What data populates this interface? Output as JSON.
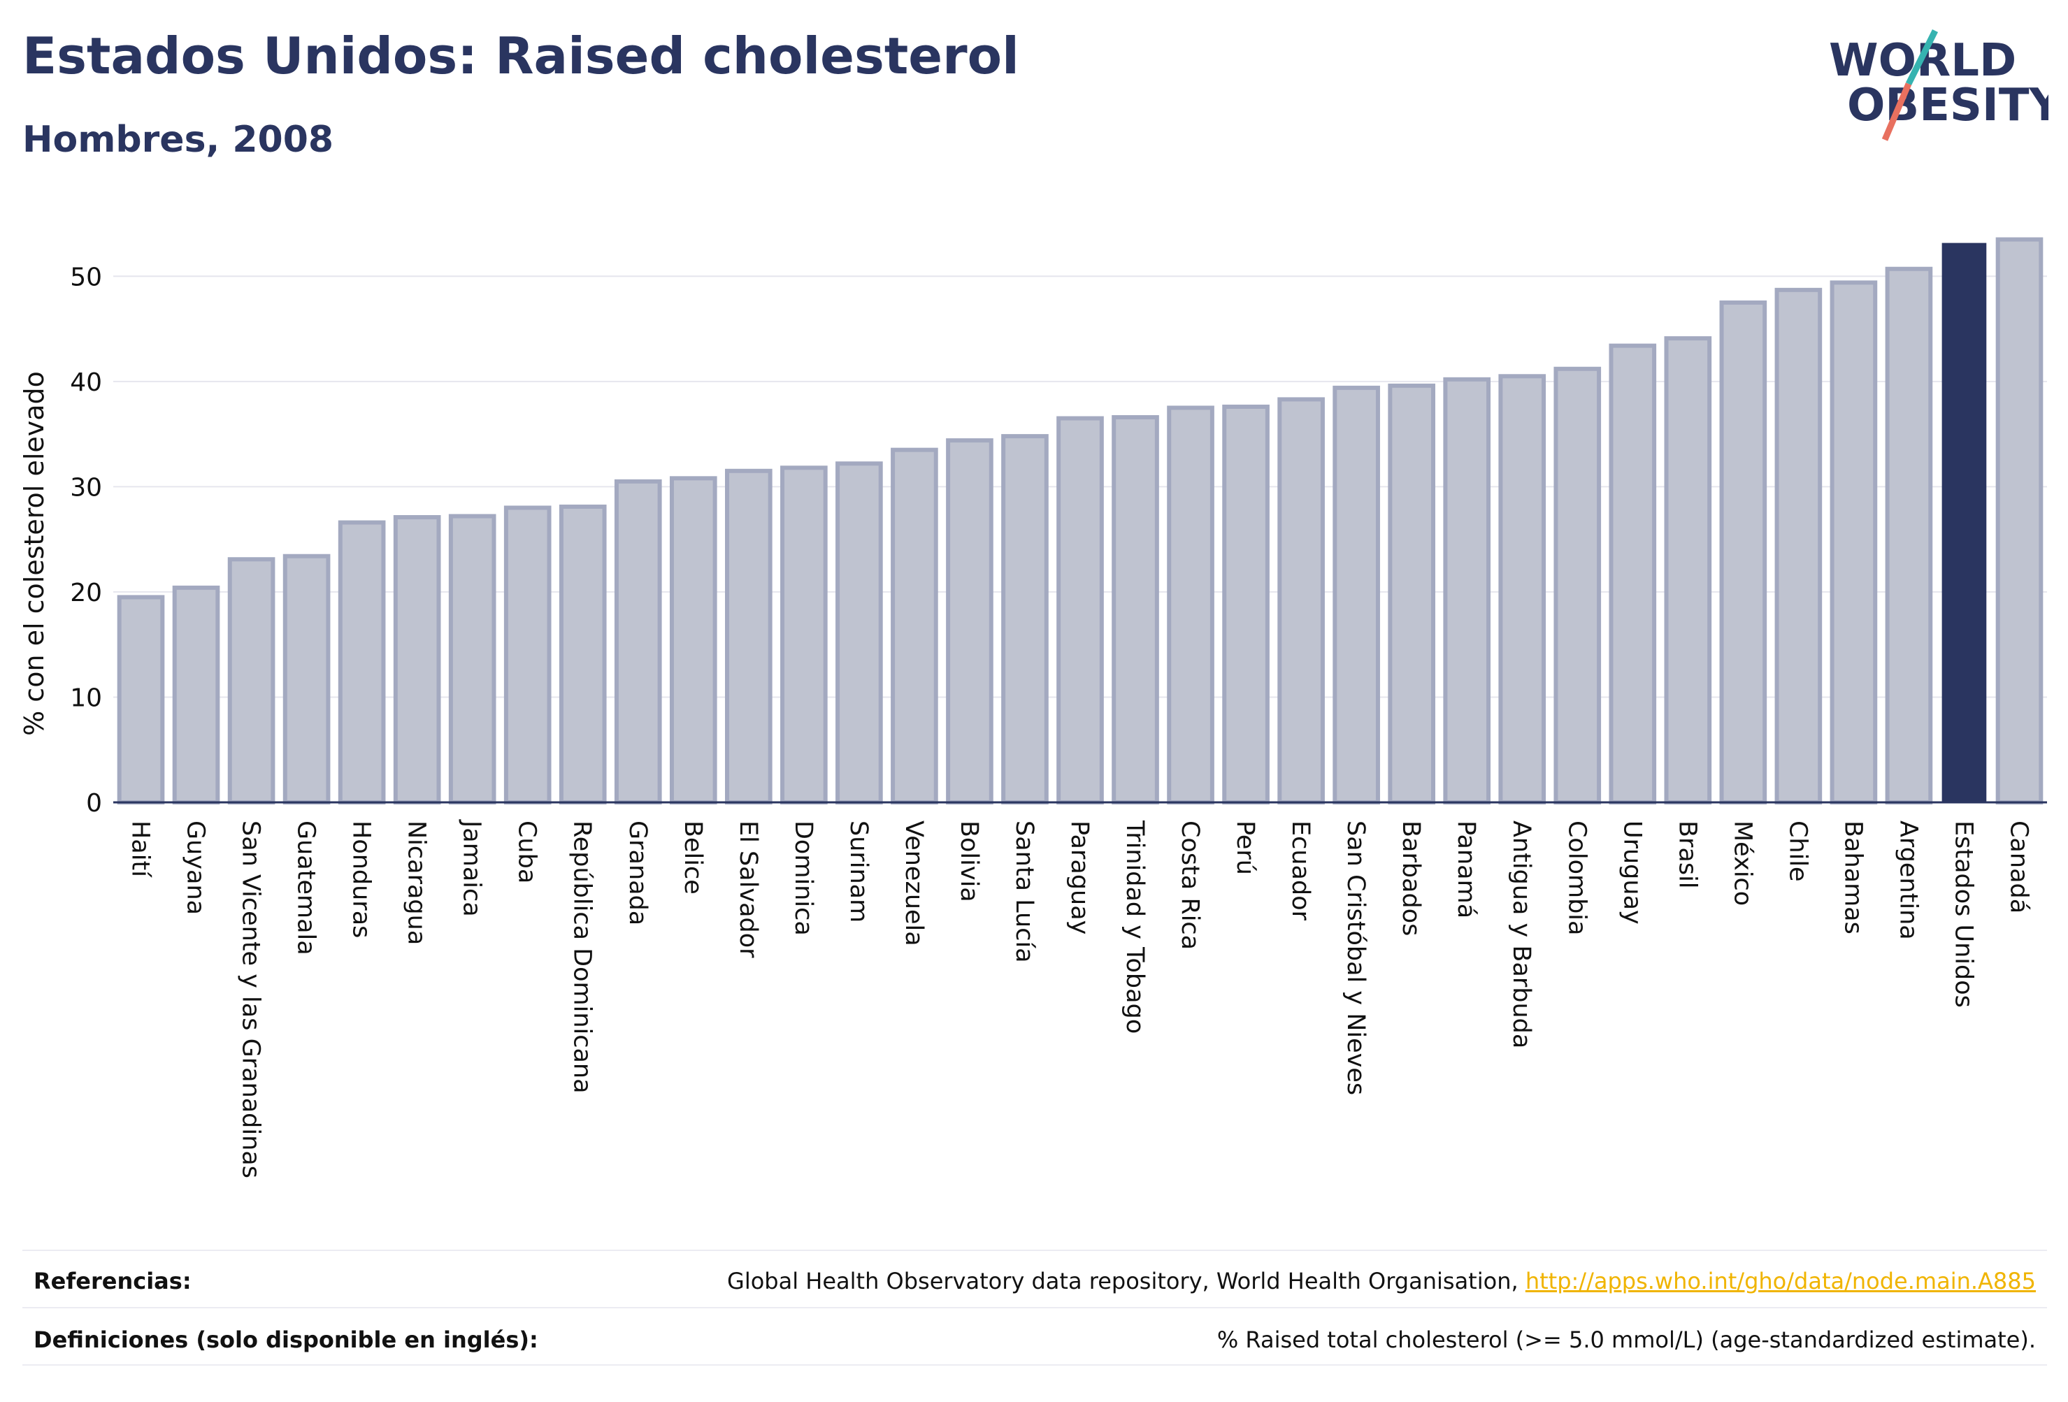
{
  "header": {
    "title": "Estados Unidos: Raised cholesterol",
    "subtitle": "Hombres, 2008"
  },
  "logo": {
    "line1": "WORLD",
    "line2": "OBESITY"
  },
  "chart_data": {
    "type": "bar",
    "ylabel": "% con el colesterol elevado",
    "ylim": [
      0,
      55
    ],
    "yticks": [
      0,
      10,
      20,
      30,
      40,
      50
    ],
    "grid": true,
    "categories": [
      "Haití",
      "Guyana",
      "San Vicente y las Granadinas",
      "Guatemala",
      "Honduras",
      "Nicaragua",
      "Jamaica",
      "Cuba",
      "República Dominicana",
      "Granada",
      "Belice",
      "El Salvador",
      "Dominica",
      "Surinam",
      "Venezuela",
      "Bolivia",
      "Santa Lucía",
      "Paraguay",
      "Trinidad y Tobago",
      "Costa Rica",
      "Perú",
      "Ecuador",
      "San Cristóbal y Nieves",
      "Barbados",
      "Panamá",
      "Antigua y Barbuda",
      "Colombia",
      "Uruguay",
      "Brasil",
      "México",
      "Chile",
      "Bahamas",
      "Argentina",
      "Estados Unidos",
      "Canadá"
    ],
    "values": [
      19.5,
      20.4,
      23.1,
      23.4,
      26.6,
      27.1,
      27.2,
      28.0,
      28.1,
      30.5,
      30.8,
      31.5,
      31.8,
      32.2,
      33.5,
      34.4,
      34.8,
      36.5,
      36.6,
      37.5,
      37.6,
      38.3,
      39.4,
      39.6,
      40.2,
      40.5,
      41.2,
      43.4,
      44.1,
      47.5,
      48.7,
      49.4,
      50.7,
      53.1,
      53.5
    ],
    "highlight": "Estados Unidos",
    "colors": {
      "bar": "#bfc3d0",
      "bar_border": "#a3a9c0",
      "highlight": "#2a3560",
      "grid": "#e6e6ee",
      "axis": "#2a3560"
    }
  },
  "footer": {
    "references_label": "Referencias:",
    "references_text": "Global Health Observatory data repository, World Health Organisation,",
    "references_link": "http://apps.who.int/gho/data/node.main.A885",
    "definitions_label": "Definiciones (solo disponible en inglés):",
    "definitions_text": "% Raised total cholesterol (>= 5.0 mmol/L) (age-standardized estimate)."
  }
}
